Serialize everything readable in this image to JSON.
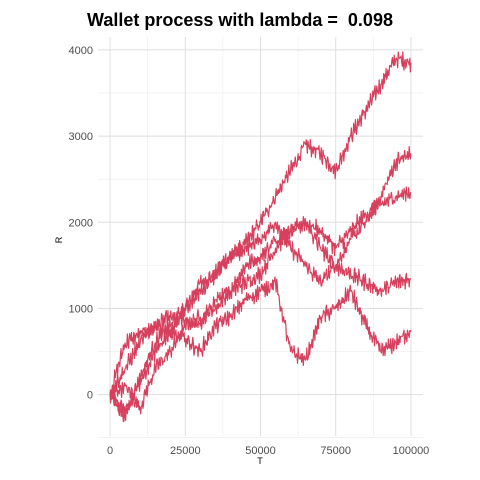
{
  "chart_data": {
    "type": "line",
    "title": "Wallet process with lambda =  0.098",
    "xlabel": "T",
    "ylabel": "R",
    "xlim": [
      -4000,
      104000
    ],
    "ylim": [
      -480,
      4150
    ],
    "x_ticks": [
      0,
      25000,
      50000,
      75000,
      100000
    ],
    "y_ticks": [
      0,
      1000,
      2000,
      3000,
      4000
    ],
    "x_tick_labels": [
      "0",
      "25000",
      "50000",
      "75000",
      "100000"
    ],
    "y_tick_labels": [
      "0",
      "1000",
      "2000",
      "3000",
      "4000"
    ],
    "grid": true,
    "line_color": "#d6405c",
    "series": [
      {
        "x": [
          0,
          5000,
          10000,
          15000,
          20000,
          25000,
          30000,
          35000,
          40000,
          45000,
          50000,
          55000,
          60000,
          65000,
          70000,
          75000,
          80000,
          85000,
          90000,
          95000,
          100000
        ],
        "values": [
          0,
          -200,
          150,
          500,
          700,
          1000,
          1300,
          1400,
          1600,
          1750,
          2000,
          2300,
          2600,
          2900,
          2800,
          2600,
          3000,
          3300,
          3600,
          3900,
          3850
        ]
      },
      {
        "x": [
          0,
          5000,
          10000,
          15000,
          20000,
          25000,
          30000,
          35000,
          40000,
          45000,
          50000,
          55000,
          60000,
          65000,
          70000,
          75000,
          80000,
          85000,
          90000,
          95000,
          100000
        ],
        "values": [
          0,
          600,
          700,
          800,
          900,
          850,
          800,
          1100,
          1200,
          1500,
          1600,
          1800,
          1900,
          2000,
          1700,
          1500,
          1800,
          2000,
          2300,
          2700,
          2800
        ]
      },
      {
        "x": [
          0,
          5000,
          10000,
          15000,
          20000,
          25000,
          30000,
          35000,
          40000,
          45000,
          50000,
          55000,
          60000,
          65000,
          70000,
          75000,
          80000,
          85000,
          90000,
          95000,
          100000
        ],
        "values": [
          0,
          100,
          -150,
          300,
          500,
          800,
          900,
          1000,
          1200,
          1300,
          1400,
          1700,
          1900,
          2000,
          1900,
          1700,
          1900,
          2100,
          2200,
          2300,
          2350
        ]
      },
      {
        "x": [
          0,
          5000,
          10000,
          15000,
          20000,
          25000,
          30000,
          35000,
          40000,
          45000,
          50000,
          55000,
          60000,
          65000,
          70000,
          75000,
          80000,
          85000,
          90000,
          95000,
          100000
        ],
        "values": [
          0,
          -250,
          200,
          600,
          800,
          1000,
          1200,
          1400,
          1600,
          1700,
          1800,
          2000,
          1700,
          1500,
          1300,
          1500,
          1400,
          1300,
          1200,
          1300,
          1350
        ]
      },
      {
        "x": [
          0,
          5000,
          10000,
          15000,
          20000,
          25000,
          30000,
          35000,
          40000,
          45000,
          50000,
          55000,
          60000,
          65000,
          70000,
          75000,
          80000,
          85000,
          90000,
          95000,
          100000
        ],
        "values": [
          0,
          300,
          600,
          800,
          700,
          650,
          500,
          800,
          900,
          1100,
          1200,
          1300,
          500,
          400,
          900,
          1000,
          1200,
          800,
          500,
          600,
          750
        ]
      }
    ]
  }
}
